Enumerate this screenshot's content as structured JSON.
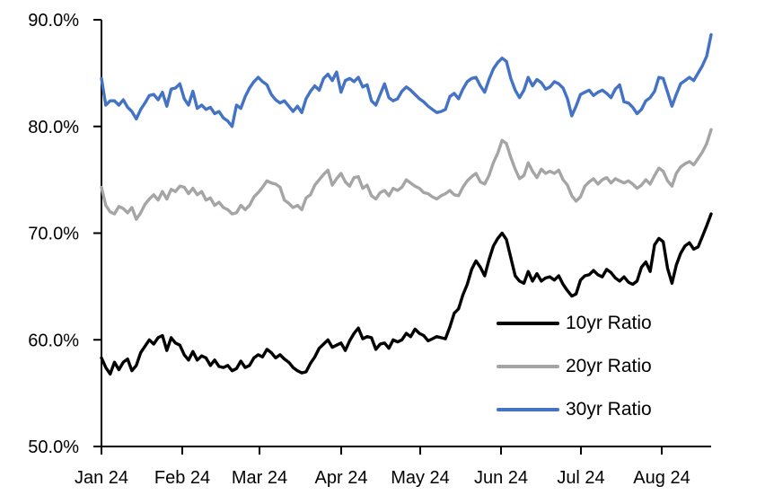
{
  "chart_data": {
    "type": "line",
    "title": "",
    "grid": false,
    "legend_position": "inside-bottom-right",
    "ylim": [
      50,
      90
    ],
    "y_axis": {
      "tick_labels": [
        "90.0%",
        "80.0%",
        "70.0%",
        "60.0%",
        "50.0%"
      ],
      "tick_values": [
        90,
        80,
        70,
        60,
        50
      ]
    },
    "x_axis": {
      "tick_labels": [
        "Jan 24",
        "Feb 24",
        "Mar 24",
        "Apr 24",
        "May 24",
        "Jun 24",
        "Jul 24",
        "Aug 24"
      ]
    },
    "series": [
      {
        "name": "10yr Ratio",
        "color": "#000000",
        "values": [
          58.3,
          57.4,
          56.8,
          57.9,
          57.2,
          57.9,
          58.2,
          57.1,
          57.6,
          58.8,
          59.4,
          60.0,
          59.6,
          60.2,
          60.4,
          59.0,
          60.2,
          59.7,
          59.5,
          58.6,
          58.1,
          58.9,
          58.1,
          58.5,
          58.3,
          57.6,
          58.1,
          57.5,
          57.4,
          57.6,
          57.1,
          57.3,
          58.0,
          57.4,
          57.6,
          58.3,
          58.6,
          58.4,
          59.1,
          58.8,
          58.3,
          58.6,
          58.2,
          57.9,
          57.4,
          57.1,
          56.9,
          57.0,
          57.8,
          58.4,
          59.2,
          59.6,
          60.0,
          59.3,
          59.5,
          59.7,
          59.0,
          59.9,
          60.6,
          61.1,
          60.1,
          60.3,
          60.2,
          59.1,
          59.6,
          59.7,
          59.2,
          60.0,
          59.8,
          60.0,
          60.6,
          60.3,
          61.0,
          60.6,
          60.4,
          59.9,
          60.1,
          60.3,
          60.2,
          60.1,
          61.2,
          62.5,
          62.9,
          64.2,
          65.2,
          66.6,
          67.4,
          66.8,
          66.0,
          67.5,
          68.8,
          69.5,
          70.0,
          69.4,
          67.7,
          66.0,
          65.5,
          65.3,
          66.4,
          65.5,
          66.2,
          65.5,
          65.8,
          65.9,
          65.6,
          66.0,
          65.2,
          64.6,
          64.1,
          64.3,
          65.6,
          66.0,
          66.1,
          66.5,
          66.1,
          65.9,
          66.6,
          66.3,
          65.8,
          65.5,
          65.9,
          65.4,
          65.2,
          65.5,
          66.8,
          67.3,
          66.4,
          68.9,
          69.5,
          69.2,
          66.7,
          65.3,
          67.0,
          68.1,
          68.8,
          69.1,
          68.5,
          68.7,
          69.7,
          70.7,
          71.8
        ]
      },
      {
        "name": "20yr Ratio",
        "color": "#A5A5A5",
        "values": [
          74.3,
          72.6,
          72.0,
          71.8,
          72.5,
          72.3,
          71.9,
          72.4,
          71.3,
          71.9,
          72.7,
          73.2,
          73.6,
          73.1,
          73.9,
          73.2,
          74.1,
          73.9,
          74.4,
          74.3,
          73.7,
          74.2,
          73.6,
          73.9,
          73.1,
          73.3,
          72.6,
          72.9,
          72.4,
          72.2,
          71.8,
          71.9,
          72.6,
          72.2,
          72.6,
          73.4,
          73.8,
          74.3,
          74.9,
          74.7,
          74.6,
          74.3,
          73.1,
          72.8,
          72.4,
          72.6,
          72.2,
          73.3,
          73.6,
          74.5,
          75.0,
          75.5,
          75.9,
          74.5,
          75.1,
          75.6,
          74.8,
          74.4,
          75.2,
          75.3,
          74.2,
          74.5,
          73.5,
          73.2,
          73.8,
          74.0,
          73.5,
          74.2,
          74.0,
          74.3,
          75.0,
          74.7,
          74.4,
          74.2,
          73.8,
          73.7,
          73.4,
          73.2,
          73.5,
          73.7,
          74.0,
          73.6,
          73.5,
          74.3,
          74.9,
          75.3,
          75.6,
          74.8,
          74.6,
          75.4,
          76.6,
          77.5,
          78.7,
          78.4,
          77.1,
          76.0,
          75.1,
          75.4,
          76.6,
          75.8,
          75.2,
          76.0,
          75.6,
          75.8,
          75.6,
          75.9,
          75.0,
          74.5,
          73.5,
          73.0,
          73.4,
          74.4,
          74.8,
          75.1,
          74.6,
          75.0,
          75.2,
          74.7,
          75.1,
          74.9,
          74.7,
          74.9,
          74.6,
          74.2,
          74.5,
          75.0,
          74.6,
          75.4,
          76.1,
          75.8,
          74.9,
          74.4,
          75.6,
          76.2,
          76.5,
          76.7,
          76.4,
          77.0,
          77.6,
          78.4,
          79.7
        ]
      },
      {
        "name": "30yr Ratio",
        "color": "#4472C4",
        "values": [
          84.5,
          82.0,
          82.4,
          82.4,
          82.0,
          82.5,
          81.8,
          81.4,
          80.7,
          81.6,
          82.2,
          82.9,
          83.0,
          82.5,
          83.2,
          81.9,
          83.5,
          83.6,
          84.0,
          82.6,
          82.0,
          83.3,
          81.7,
          82.0,
          81.6,
          81.8,
          81.2,
          81.4,
          80.8,
          80.5,
          80.0,
          82.0,
          81.7,
          82.8,
          83.6,
          84.2,
          84.6,
          84.2,
          83.9,
          83.0,
          82.5,
          82.2,
          82.4,
          81.9,
          81.4,
          81.9,
          81.3,
          82.6,
          83.3,
          83.8,
          83.4,
          84.5,
          84.9,
          84.3,
          85.1,
          83.2,
          84.3,
          84.5,
          84.2,
          84.6,
          83.7,
          83.9,
          82.4,
          82.0,
          83.0,
          84.0,
          82.7,
          82.4,
          82.6,
          83.3,
          83.7,
          83.4,
          83.0,
          82.6,
          82.3,
          81.9,
          81.6,
          81.3,
          81.4,
          81.6,
          82.8,
          83.1,
          82.6,
          83.5,
          84.2,
          84.5,
          84.6,
          83.8,
          83.2,
          84.4,
          85.4,
          86.0,
          86.4,
          86.1,
          84.5,
          83.4,
          82.7,
          83.4,
          84.6,
          83.8,
          84.4,
          84.1,
          83.5,
          83.7,
          84.2,
          84.0,
          83.6,
          82.6,
          81.0,
          81.9,
          83.0,
          83.2,
          83.4,
          82.9,
          83.2,
          83.4,
          83.1,
          82.7,
          83.5,
          83.9,
          82.3,
          82.2,
          81.8,
          81.2,
          81.6,
          82.4,
          82.7,
          83.3,
          84.6,
          84.5,
          83.2,
          81.9,
          83.0,
          84.0,
          84.3,
          84.6,
          84.3,
          85.0,
          85.7,
          86.6,
          88.6
        ]
      }
    ]
  }
}
